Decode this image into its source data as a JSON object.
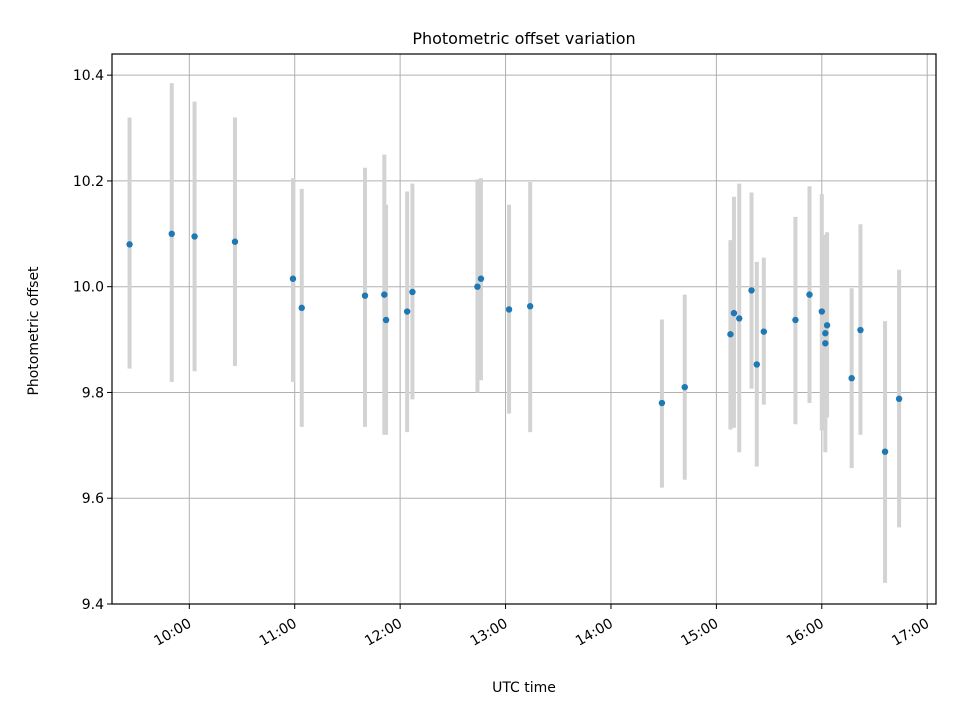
{
  "chart_data": {
    "type": "scatter",
    "title": "Photometric offset variation",
    "xlabel": "UTC time",
    "ylabel": "Photometric offset",
    "x_kind": "time",
    "xlim": [
      "09:16",
      "17:05"
    ],
    "ylim": [
      9.4,
      10.44
    ],
    "grid": true,
    "x_ticks": [
      "10:00",
      "11:00",
      "12:00",
      "13:00",
      "14:00",
      "15:00",
      "16:00",
      "17:00"
    ],
    "y_ticks": [
      "9.4",
      "9.6",
      "9.8",
      "10.0",
      "10.2",
      "10.4"
    ],
    "marker_color": "#1f77b4",
    "errorbar_color": "#d3d3d3",
    "series": [
      {
        "points": [
          {
            "x": "09:26",
            "y": 10.08,
            "ylow": 9.845,
            "yhigh": 10.32
          },
          {
            "x": "09:50",
            "y": 10.1,
            "ylow": 9.82,
            "yhigh": 10.385
          },
          {
            "x": "10:03",
            "y": 10.095,
            "ylow": 9.84,
            "yhigh": 10.35
          },
          {
            "x": "10:26",
            "y": 10.085,
            "ylow": 9.85,
            "yhigh": 10.32
          },
          {
            "x": "10:59",
            "y": 10.015,
            "ylow": 9.82,
            "yhigh": 10.205
          },
          {
            "x": "11:04",
            "y": 9.96,
            "ylow": 9.735,
            "yhigh": 10.185
          },
          {
            "x": "11:40",
            "y": 9.983,
            "ylow": 9.735,
            "yhigh": 10.225
          },
          {
            "x": "11:51",
            "y": 9.985,
            "ylow": 9.72,
            "yhigh": 10.25
          },
          {
            "x": "11:52",
            "y": 9.937,
            "ylow": 9.72,
            "yhigh": 10.155
          },
          {
            "x": "12:04",
            "y": 9.953,
            "ylow": 9.725,
            "yhigh": 10.18
          },
          {
            "x": "12:07",
            "y": 9.99,
            "ylow": 9.787,
            "yhigh": 10.195
          },
          {
            "x": "12:44",
            "y": 10.0,
            "ylow": 9.8,
            "yhigh": 10.203
          },
          {
            "x": "12:46",
            "y": 10.015,
            "ylow": 9.823,
            "yhigh": 10.205
          },
          {
            "x": "13:02",
            "y": 9.957,
            "ylow": 9.76,
            "yhigh": 10.155
          },
          {
            "x": "13:14",
            "y": 9.963,
            "ylow": 9.725,
            "yhigh": 10.198
          },
          {
            "x": "14:29",
            "y": 9.78,
            "ylow": 9.62,
            "yhigh": 9.938
          },
          {
            "x": "14:42",
            "y": 9.81,
            "ylow": 9.635,
            "yhigh": 9.985
          },
          {
            "x": "15:08",
            "y": 9.91,
            "ylow": 9.73,
            "yhigh": 10.088
          },
          {
            "x": "15:10",
            "y": 9.95,
            "ylow": 9.733,
            "yhigh": 10.17
          },
          {
            "x": "15:13",
            "y": 9.94,
            "ylow": 9.687,
            "yhigh": 10.195
          },
          {
            "x": "15:20",
            "y": 9.993,
            "ylow": 9.807,
            "yhigh": 10.178
          },
          {
            "x": "15:23",
            "y": 9.853,
            "ylow": 9.66,
            "yhigh": 10.047
          },
          {
            "x": "15:27",
            "y": 9.915,
            "ylow": 9.777,
            "yhigh": 10.055
          },
          {
            "x": "15:45",
            "y": 9.937,
            "ylow": 9.74,
            "yhigh": 10.132
          },
          {
            "x": "15:53",
            "y": 9.985,
            "ylow": 9.78,
            "yhigh": 10.19
          },
          {
            "x": "16:00",
            "y": 9.953,
            "ylow": 9.728,
            "yhigh": 10.175
          },
          {
            "x": "16:02",
            "y": 9.912,
            "ylow": 9.733,
            "yhigh": 10.09
          },
          {
            "x": "16:02",
            "y": 9.893,
            "ylow": 9.687,
            "yhigh": 10.098
          },
          {
            "x": "16:03",
            "y": 9.927,
            "ylow": 9.753,
            "yhigh": 10.103
          },
          {
            "x": "16:17",
            "y": 9.827,
            "ylow": 9.657,
            "yhigh": 9.997
          },
          {
            "x": "16:22",
            "y": 9.918,
            "ylow": 9.72,
            "yhigh": 10.118
          },
          {
            "x": "16:36",
            "y": 9.688,
            "ylow": 9.44,
            "yhigh": 9.935
          },
          {
            "x": "16:44",
            "y": 9.788,
            "ylow": 9.545,
            "yhigh": 10.032
          }
        ]
      }
    ]
  }
}
